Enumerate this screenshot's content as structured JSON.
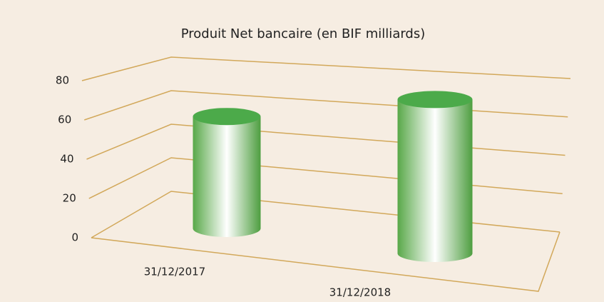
{
  "chart_data": {
    "type": "bar",
    "title": "Produit Net bancaire (en BIF milliards)",
    "categories": [
      "31/12/2017",
      "31/12/2018"
    ],
    "values": [
      56,
      77
    ],
    "color": "#4caa4a",
    "ylim": [
      0,
      80
    ],
    "yticks": [
      0,
      20,
      40,
      60,
      80
    ],
    "grid": true
  }
}
